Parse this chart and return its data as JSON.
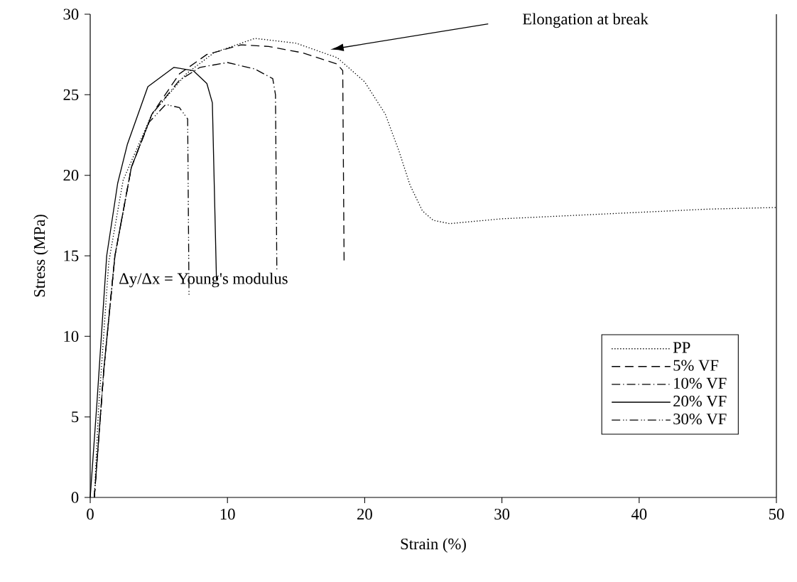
{
  "chart_data": {
    "type": "line",
    "xlabel": "Strain (%)",
    "ylabel": "Stress (MPa)",
    "xlim": [
      0,
      50
    ],
    "ylim": [
      0,
      30
    ],
    "xticks": [
      0,
      10,
      20,
      30,
      40,
      50
    ],
    "yticks": [
      0,
      5,
      10,
      15,
      20,
      25,
      30
    ],
    "legend": "bottom right",
    "grid": false,
    "marker": "none",
    "series": [
      {
        "name": "PP",
        "color": "#000000",
        "line_style": "dotted",
        "x": [
          0.3,
          0.6,
          1.35,
          2.4,
          4.5,
          7,
          9,
          12,
          15,
          18,
          20,
          21.5,
          22.5,
          23.3,
          24.2,
          25,
          26.2,
          30,
          35,
          40,
          45,
          50
        ],
        "values": [
          0,
          5.4,
          14.6,
          19.7,
          23.8,
          26.3,
          27.6,
          28.5,
          28.2,
          27.3,
          25.8,
          23.8,
          21.5,
          19.4,
          17.8,
          17.2,
          17.0,
          17.3,
          17.5,
          17.7,
          17.9,
          18.0
        ]
      },
      {
        "name": "5% VF",
        "color": "#000000",
        "line_style": "dashed",
        "x": [
          0.3,
          1,
          1.8,
          3,
          4.5,
          6.5,
          8.5,
          11,
          13,
          15.5,
          18,
          18.4,
          18.5
        ],
        "values": [
          0,
          8,
          15,
          20.5,
          23.8,
          26.3,
          27.5,
          28.1,
          28.0,
          27.6,
          26.9,
          26.5,
          14.6
        ]
      },
      {
        "name": "10% VF",
        "color": "#000000",
        "line_style": "dashdot",
        "x": [
          0.3,
          1,
          1.8,
          3,
          4.5,
          6.5,
          8,
          10,
          12,
          13.3,
          13.5,
          13.6
        ],
        "values": [
          0,
          8,
          15,
          20.5,
          23.8,
          25.9,
          26.7,
          27.0,
          26.6,
          26.0,
          25,
          14.0
        ]
      },
      {
        "name": "20% VF",
        "color": "#000000",
        "line_style": "solid",
        "x": [
          0,
          0.5,
          1.2,
          2.0,
          2.7,
          4.2,
          6.1,
          7.5,
          8.5,
          8.9,
          9.2
        ],
        "values": [
          0,
          6,
          15,
          19.5,
          21.9,
          25.5,
          26.7,
          26.5,
          25.7,
          24.5,
          13.5
        ]
      },
      {
        "name": "30% VF",
        "color": "#000000",
        "line_style": "dashdotdot",
        "x": [
          0.3,
          1,
          1.8,
          3,
          4.3,
          5.5,
          6.5,
          7.1,
          7.2
        ],
        "values": [
          0,
          8,
          15,
          20.5,
          23.3,
          24.4,
          24.2,
          23.5,
          12.5
        ]
      }
    ],
    "annotations": [
      "Elongation at break",
      "Δy/Δx = Young's modulus"
    ]
  }
}
